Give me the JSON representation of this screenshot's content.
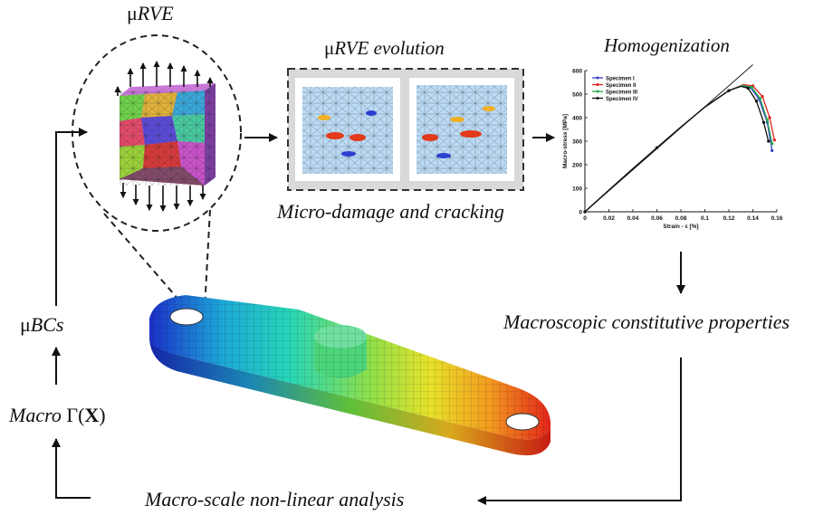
{
  "labels": {
    "mu": "μ",
    "rve": "RVE",
    "evolution_mu": "μ",
    "evolution_text": "RVE evolution",
    "micro_damage": "Micro-damage and cracking",
    "homogenization": "Homogenization",
    "macro_props": "Macroscopic constitutive properties",
    "macro_analysis": "Macro-scale non-linear analysis",
    "bcs_mu": "μ",
    "bcs_text": "BCs",
    "macro_word": "Macro",
    "gamma_open": "Γ(",
    "gamma_x": "X",
    "gamma_close": ")"
  },
  "colors": {
    "arrow": "#111111",
    "dash": "#333333",
    "panel_bg": "#d9d9d9",
    "spec1": "#3340c4",
    "spec2": "#e02020",
    "spec3": "#22a84a",
    "spec4": "#111111"
  },
  "chart_data": {
    "type": "line",
    "xlabel": "Strain - ε [%]",
    "ylabel": "Macro-stress [MPa]",
    "xlim": [
      0,
      0.16
    ],
    "ylim": [
      0,
      600
    ],
    "xticks": [
      "0",
      "0.02",
      "0.04",
      "0.06",
      "0.08",
      "0.1",
      "0.12",
      "0.14",
      "0.16"
    ],
    "yticks": [
      "0",
      "100",
      "200",
      "300",
      "400",
      "500",
      "600"
    ],
    "legend_position": "top-left",
    "series": [
      {
        "name": "Specimen I",
        "color": "#3340c4",
        "x": [
          0,
          0.02,
          0.04,
          0.06,
          0.08,
          0.1,
          0.12,
          0.13,
          0.138,
          0.145,
          0.152,
          0.156
        ],
        "y": [
          0,
          92,
          183,
          272,
          360,
          445,
          515,
          535,
          528,
          480,
          380,
          260
        ]
      },
      {
        "name": "Specimen II",
        "color": "#e02020",
        "x": [
          0,
          0.02,
          0.04,
          0.06,
          0.08,
          0.1,
          0.12,
          0.132,
          0.14,
          0.148,
          0.154,
          0.158
        ],
        "y": [
          0,
          92,
          183,
          272,
          360,
          445,
          515,
          540,
          535,
          490,
          400,
          305
        ]
      },
      {
        "name": "Specimen III",
        "color": "#22a84a",
        "x": [
          0,
          0.02,
          0.04,
          0.06,
          0.08,
          0.1,
          0.12,
          0.131,
          0.139,
          0.146,
          0.152,
          0.156
        ],
        "y": [
          0,
          92,
          183,
          272,
          360,
          445,
          515,
          537,
          530,
          482,
          390,
          290
        ]
      },
      {
        "name": "Specimen IV",
        "color": "#111111",
        "x": [
          0,
          0.02,
          0.04,
          0.06,
          0.08,
          0.1,
          0.12,
          0.13,
          0.136,
          0.143,
          0.149,
          0.153
        ],
        "y": [
          0,
          92,
          183,
          272,
          360,
          445,
          515,
          533,
          525,
          470,
          380,
          300
        ]
      }
    ],
    "reference_line": {
      "x": [
        0,
        0.14
      ],
      "y": [
        0,
        625
      ]
    }
  }
}
